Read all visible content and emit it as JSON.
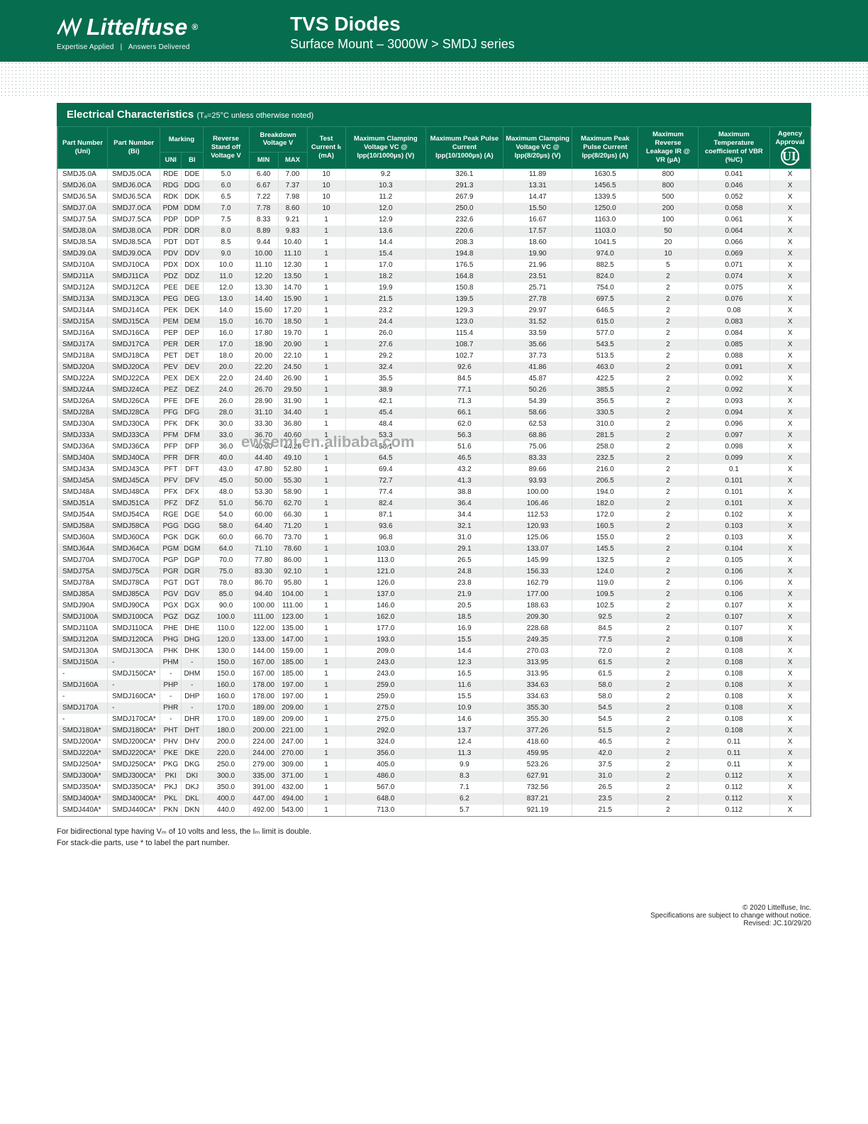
{
  "header": {
    "brand": "Littelfuse",
    "tagline_left": "Expertise Applied",
    "tagline_right": "Answers Delivered",
    "title": "TVS Diodes",
    "subtitle": "Surface Mount – 3000W  >  SMDJ series"
  },
  "section": {
    "title": "Electrical Characteristics",
    "note": "(Tₐ=25°C unless otherwise noted)"
  },
  "columns": {
    "part_uni": "Part Number (Uni)",
    "part_bi": "Part Number (Bi)",
    "marking": "Marking",
    "marking_uni": "UNI",
    "marking_bi": "BI",
    "reverse_standoff": "Reverse Stand off Voltage V",
    "breakdown": "Breakdown Voltage V",
    "breakdown_min": "MIN",
    "breakdown_max": "MAX",
    "test_current": "Test Current Iₜ (mA)",
    "max_clamp_10_1000": "Maximum Clamping Voltage VC @ Ipp(10/1000µs) (V)",
    "max_peak_pulse_10_1000": "Maximum Peak Pulse Current Ipp(10/1000µs) (A)",
    "max_clamp_8_20": "Maximum Clamping Voltage VC @ Ipp(8/20µs) (V)",
    "max_peak_pulse_8_20": "Maximum Peak Pulse Current Ipp(8/20µs) (A)",
    "max_reverse_leakage": "Maximum Reverse Leakage IR @ VR (µA)",
    "max_temp_coef": "Maximum Temperature coefficient of VBR (%/C)",
    "agency": "Agency Approval"
  },
  "rows": [
    [
      "SMDJ5.0A",
      "SMDJ5.0CA",
      "RDE",
      "DDE",
      "5.0",
      "6.40",
      "7.00",
      "10",
      "9.2",
      "326.1",
      "11.89",
      "1630.5",
      "800",
      "0.041",
      "X"
    ],
    [
      "SMDJ6.0A",
      "SMDJ6.0CA",
      "RDG",
      "DDG",
      "6.0",
      "6.67",
      "7.37",
      "10",
      "10.3",
      "291.3",
      "13.31",
      "1456.5",
      "800",
      "0.046",
      "X"
    ],
    [
      "SMDJ6.5A",
      "SMDJ6.5CA",
      "RDK",
      "DDK",
      "6.5",
      "7.22",
      "7.98",
      "10",
      "11.2",
      "267.9",
      "14.47",
      "1339.5",
      "500",
      "0.052",
      "X"
    ],
    [
      "SMDJ7.0A",
      "SMDJ7.0CA",
      "PDM",
      "DDM",
      "7.0",
      "7.78",
      "8.60",
      "10",
      "12.0",
      "250.0",
      "15.50",
      "1250.0",
      "200",
      "0.058",
      "X"
    ],
    [
      "SMDJ7.5A",
      "SMDJ7.5CA",
      "PDP",
      "DDP",
      "7.5",
      "8.33",
      "9.21",
      "1",
      "12.9",
      "232.6",
      "16.67",
      "1163.0",
      "100",
      "0.061",
      "X"
    ],
    [
      "SMDJ8.0A",
      "SMDJ8.0CA",
      "PDR",
      "DDR",
      "8.0",
      "8.89",
      "9.83",
      "1",
      "13.6",
      "220.6",
      "17.57",
      "1103.0",
      "50",
      "0.064",
      "X"
    ],
    [
      "SMDJ8.5A",
      "SMDJ8.5CA",
      "PDT",
      "DDT",
      "8.5",
      "9.44",
      "10.40",
      "1",
      "14.4",
      "208.3",
      "18.60",
      "1041.5",
      "20",
      "0.066",
      "X"
    ],
    [
      "SMDJ9.0A",
      "SMDJ9.0CA",
      "PDV",
      "DDV",
      "9.0",
      "10.00",
      "11.10",
      "1",
      "15.4",
      "194.8",
      "19.90",
      "974.0",
      "10",
      "0.069",
      "X"
    ],
    [
      "SMDJ10A",
      "SMDJ10CA",
      "PDX",
      "DDX",
      "10.0",
      "11.10",
      "12.30",
      "1",
      "17.0",
      "176.5",
      "21.96",
      "882.5",
      "5",
      "0.071",
      "X"
    ],
    [
      "SMDJ11A",
      "SMDJ11CA",
      "PDZ",
      "DDZ",
      "11.0",
      "12.20",
      "13.50",
      "1",
      "18.2",
      "164.8",
      "23.51",
      "824.0",
      "2",
      "0.074",
      "X"
    ],
    [
      "SMDJ12A",
      "SMDJ12CA",
      "PEE",
      "DEE",
      "12.0",
      "13.30",
      "14.70",
      "1",
      "19.9",
      "150.8",
      "25.71",
      "754.0",
      "2",
      "0.075",
      "X"
    ],
    [
      "SMDJ13A",
      "SMDJ13CA",
      "PEG",
      "DEG",
      "13.0",
      "14.40",
      "15.90",
      "1",
      "21.5",
      "139.5",
      "27.78",
      "697.5",
      "2",
      "0.076",
      "X"
    ],
    [
      "SMDJ14A",
      "SMDJ14CA",
      "PEK",
      "DEK",
      "14.0",
      "15.60",
      "17.20",
      "1",
      "23.2",
      "129.3",
      "29.97",
      "646.5",
      "2",
      "0.08",
      "X"
    ],
    [
      "SMDJ15A",
      "SMDJ15CA",
      "PEM",
      "DEM",
      "15.0",
      "16.70",
      "18.50",
      "1",
      "24.4",
      "123.0",
      "31.52",
      "615.0",
      "2",
      "0.083",
      "X"
    ],
    [
      "SMDJ16A",
      "SMDJ16CA",
      "PEP",
      "DEP",
      "16.0",
      "17.80",
      "19.70",
      "1",
      "26.0",
      "115.4",
      "33.59",
      "577.0",
      "2",
      "0.084",
      "X"
    ],
    [
      "SMDJ17A",
      "SMDJ17CA",
      "PER",
      "DER",
      "17.0",
      "18.90",
      "20.90",
      "1",
      "27.6",
      "108.7",
      "35.66",
      "543.5",
      "2",
      "0.085",
      "X"
    ],
    [
      "SMDJ18A",
      "SMDJ18CA",
      "PET",
      "DET",
      "18.0",
      "20.00",
      "22.10",
      "1",
      "29.2",
      "102.7",
      "37.73",
      "513.5",
      "2",
      "0.088",
      "X"
    ],
    [
      "SMDJ20A",
      "SMDJ20CA",
      "PEV",
      "DEV",
      "20.0",
      "22.20",
      "24.50",
      "1",
      "32.4",
      "92.6",
      "41.86",
      "463.0",
      "2",
      "0.091",
      "X"
    ],
    [
      "SMDJ22A",
      "SMDJ22CA",
      "PEX",
      "DEX",
      "22.0",
      "24.40",
      "26.90",
      "1",
      "35.5",
      "84.5",
      "45.87",
      "422.5",
      "2",
      "0.092",
      "X"
    ],
    [
      "SMDJ24A",
      "SMDJ24CA",
      "PEZ",
      "DEZ",
      "24.0",
      "26.70",
      "29.50",
      "1",
      "38.9",
      "77.1",
      "50.26",
      "385.5",
      "2",
      "0.092",
      "X"
    ],
    [
      "SMDJ26A",
      "SMDJ26CA",
      "PFE",
      "DFE",
      "26.0",
      "28.90",
      "31.90",
      "1",
      "42.1",
      "71.3",
      "54.39",
      "356.5",
      "2",
      "0.093",
      "X"
    ],
    [
      "SMDJ28A",
      "SMDJ28CA",
      "PFG",
      "DFG",
      "28.0",
      "31.10",
      "34.40",
      "1",
      "45.4",
      "66.1",
      "58.66",
      "330.5",
      "2",
      "0.094",
      "X"
    ],
    [
      "SMDJ30A",
      "SMDJ30CA",
      "PFK",
      "DFK",
      "30.0",
      "33.30",
      "36.80",
      "1",
      "48.4",
      "62.0",
      "62.53",
      "310.0",
      "2",
      "0.096",
      "X"
    ],
    [
      "SMDJ33A",
      "SMDJ33CA",
      "PFM",
      "DFM",
      "33.0",
      "36.70",
      "40.60",
      "1",
      "53.3",
      "56.3",
      "68.86",
      "281.5",
      "2",
      "0.097",
      "X"
    ],
    [
      "SMDJ36A",
      "SMDJ36CA",
      "PFP",
      "DFP",
      "36.0",
      "40.00",
      "44.20",
      "1",
      "58.1",
      "51.6",
      "75.06",
      "258.0",
      "2",
      "0.098",
      "X"
    ],
    [
      "SMDJ40A",
      "SMDJ40CA",
      "PFR",
      "DFR",
      "40.0",
      "44.40",
      "49.10",
      "1",
      "64.5",
      "46.5",
      "83.33",
      "232.5",
      "2",
      "0.099",
      "X"
    ],
    [
      "SMDJ43A",
      "SMDJ43CA",
      "PFT",
      "DFT",
      "43.0",
      "47.80",
      "52.80",
      "1",
      "69.4",
      "43.2",
      "89.66",
      "216.0",
      "2",
      "0.1",
      "X"
    ],
    [
      "SMDJ45A",
      "SMDJ45CA",
      "PFV",
      "DFV",
      "45.0",
      "50.00",
      "55.30",
      "1",
      "72.7",
      "41.3",
      "93.93",
      "206.5",
      "2",
      "0.101",
      "X"
    ],
    [
      "SMDJ48A",
      "SMDJ48CA",
      "PFX",
      "DFX",
      "48.0",
      "53.30",
      "58.90",
      "1",
      "77.4",
      "38.8",
      "100.00",
      "194.0",
      "2",
      "0.101",
      "X"
    ],
    [
      "SMDJ51A",
      "SMDJ51CA",
      "PFZ",
      "DFZ",
      "51.0",
      "56.70",
      "62.70",
      "1",
      "82.4",
      "36.4",
      "106.46",
      "182.0",
      "2",
      "0.101",
      "X"
    ],
    [
      "SMDJ54A",
      "SMDJ54CA",
      "RGE",
      "DGE",
      "54.0",
      "60.00",
      "66.30",
      "1",
      "87.1",
      "34.4",
      "112.53",
      "172.0",
      "2",
      "0.102",
      "X"
    ],
    [
      "SMDJ58A",
      "SMDJ58CA",
      "PGG",
      "DGG",
      "58.0",
      "64.40",
      "71.20",
      "1",
      "93.6",
      "32.1",
      "120.93",
      "160.5",
      "2",
      "0.103",
      "X"
    ],
    [
      "SMDJ60A",
      "SMDJ60CA",
      "PGK",
      "DGK",
      "60.0",
      "66.70",
      "73.70",
      "1",
      "96.8",
      "31.0",
      "125.06",
      "155.0",
      "2",
      "0.103",
      "X"
    ],
    [
      "SMDJ64A",
      "SMDJ64CA",
      "PGM",
      "DGM",
      "64.0",
      "71.10",
      "78.60",
      "1",
      "103.0",
      "29.1",
      "133.07",
      "145.5",
      "2",
      "0.104",
      "X"
    ],
    [
      "SMDJ70A",
      "SMDJ70CA",
      "PGP",
      "DGP",
      "70.0",
      "77.80",
      "86.00",
      "1",
      "113.0",
      "26.5",
      "145.99",
      "132.5",
      "2",
      "0.105",
      "X"
    ],
    [
      "SMDJ75A",
      "SMDJ75CA",
      "PGR",
      "DGR",
      "75.0",
      "83.30",
      "92.10",
      "1",
      "121.0",
      "24.8",
      "156.33",
      "124.0",
      "2",
      "0.106",
      "X"
    ],
    [
      "SMDJ78A",
      "SMDJ78CA",
      "PGT",
      "DGT",
      "78.0",
      "86.70",
      "95.80",
      "1",
      "126.0",
      "23.8",
      "162.79",
      "119.0",
      "2",
      "0.106",
      "X"
    ],
    [
      "SMDJ85A",
      "SMDJ85CA",
      "PGV",
      "DGV",
      "85.0",
      "94.40",
      "104.00",
      "1",
      "137.0",
      "21.9",
      "177.00",
      "109.5",
      "2",
      "0.106",
      "X"
    ],
    [
      "SMDJ90A",
      "SMDJ90CA",
      "PGX",
      "DGX",
      "90.0",
      "100.00",
      "111.00",
      "1",
      "146.0",
      "20.5",
      "188.63",
      "102.5",
      "2",
      "0.107",
      "X"
    ],
    [
      "SMDJ100A",
      "SMDJ100CA",
      "PGZ",
      "DGZ",
      "100.0",
      "111.00",
      "123.00",
      "1",
      "162.0",
      "18.5",
      "209.30",
      "92.5",
      "2",
      "0.107",
      "X"
    ],
    [
      "SMDJ110A",
      "SMDJ110CA",
      "PHE",
      "DHE",
      "110.0",
      "122.00",
      "135.00",
      "1",
      "177.0",
      "16.9",
      "228.68",
      "84.5",
      "2",
      "0.107",
      "X"
    ],
    [
      "SMDJ120A",
      "SMDJ120CA",
      "PHG",
      "DHG",
      "120.0",
      "133.00",
      "147.00",
      "1",
      "193.0",
      "15.5",
      "249.35",
      "77.5",
      "2",
      "0.108",
      "X"
    ],
    [
      "SMDJ130A",
      "SMDJ130CA",
      "PHK",
      "DHK",
      "130.0",
      "144.00",
      "159.00",
      "1",
      "209.0",
      "14.4",
      "270.03",
      "72.0",
      "2",
      "0.108",
      "X"
    ],
    [
      "SMDJ150A",
      "-",
      "PHM",
      "-",
      "150.0",
      "167.00",
      "185.00",
      "1",
      "243.0",
      "12.3",
      "313.95",
      "61.5",
      "2",
      "0.108",
      "X"
    ],
    [
      "-",
      "SMDJ150CA*",
      "-",
      "DHM",
      "150.0",
      "167.00",
      "185.00",
      "1",
      "243.0",
      "16.5",
      "313.95",
      "61.5",
      "2",
      "0.108",
      "X"
    ],
    [
      "SMDJ160A",
      "-",
      "PHP",
      "-",
      "160.0",
      "178.00",
      "197.00",
      "1",
      "259.0",
      "11.6",
      "334.63",
      "58.0",
      "2",
      "0.108",
      "X"
    ],
    [
      "-",
      "SMDJ160CA*",
      "-",
      "DHP",
      "160.0",
      "178.00",
      "197.00",
      "1",
      "259.0",
      "15.5",
      "334.63",
      "58.0",
      "2",
      "0.108",
      "X"
    ],
    [
      "SMDJ170A",
      "-",
      "PHR",
      "-",
      "170.0",
      "189.00",
      "209.00",
      "1",
      "275.0",
      "10.9",
      "355.30",
      "54.5",
      "2",
      "0.108",
      "X"
    ],
    [
      "-",
      "SMDJ170CA*",
      "-",
      "DHR",
      "170.0",
      "189.00",
      "209.00",
      "1",
      "275.0",
      "14.6",
      "355.30",
      "54.5",
      "2",
      "0.108",
      "X"
    ],
    [
      "SMDJ180A*",
      "SMDJ180CA*",
      "PHT",
      "DHT",
      "180.0",
      "200.00",
      "221.00",
      "1",
      "292.0",
      "13.7",
      "377.26",
      "51.5",
      "2",
      "0.108",
      "X"
    ],
    [
      "SMDJ200A*",
      "SMDJ200CA*",
      "PHV",
      "DHV",
      "200.0",
      "224.00",
      "247.00",
      "1",
      "324.0",
      "12.4",
      "418.60",
      "46.5",
      "2",
      "0.11",
      "X"
    ],
    [
      "SMDJ220A*",
      "SMDJ220CA*",
      "PKE",
      "DKE",
      "220.0",
      "244.00",
      "270.00",
      "1",
      "356.0",
      "11.3",
      "459.95",
      "42.0",
      "2",
      "0.11",
      "X"
    ],
    [
      "SMDJ250A*",
      "SMDJ250CA*",
      "PKG",
      "DKG",
      "250.0",
      "279.00",
      "309.00",
      "1",
      "405.0",
      "9.9",
      "523.26",
      "37.5",
      "2",
      "0.11",
      "X"
    ],
    [
      "SMDJ300A*",
      "SMDJ300CA*",
      "PKI",
      "DKI",
      "300.0",
      "335.00",
      "371.00",
      "1",
      "486.0",
      "8.3",
      "627.91",
      "31.0",
      "2",
      "0.112",
      "X"
    ],
    [
      "SMDJ350A*",
      "SMDJ350CA*",
      "PKJ",
      "DKJ",
      "350.0",
      "391.00",
      "432.00",
      "1",
      "567.0",
      "7.1",
      "732.56",
      "26.5",
      "2",
      "0.112",
      "X"
    ],
    [
      "SMDJ400A*",
      "SMDJ400CA*",
      "PKL",
      "DKL",
      "400.0",
      "447.00",
      "494.00",
      "1",
      "648.0",
      "6.2",
      "837.21",
      "23.5",
      "2",
      "0.112",
      "X"
    ],
    [
      "SMDJ440A*",
      "SMDJ440CA*",
      "PKN",
      "DKN",
      "440.0",
      "492.00",
      "543.00",
      "1",
      "713.0",
      "5.7",
      "921.19",
      "21.5",
      "2",
      "0.112",
      "X"
    ]
  ],
  "footnotes": {
    "line1": "For bidirectional type having Vₘ of 10 volts and less, the Iₘ limit is double.",
    "line2": "For stack-die parts, use * to label the part number."
  },
  "footer": {
    "copyright": "© 2020 Littelfuse, Inc.",
    "disclaimer": "Specifications are subject to change without notice.",
    "revised": "Revised: JC.10/29/20"
  },
  "watermark": "ewsemi.en.alibaba.com",
  "colors": {
    "brand_green": "#066d4e",
    "row_alt": "#eaedec"
  }
}
